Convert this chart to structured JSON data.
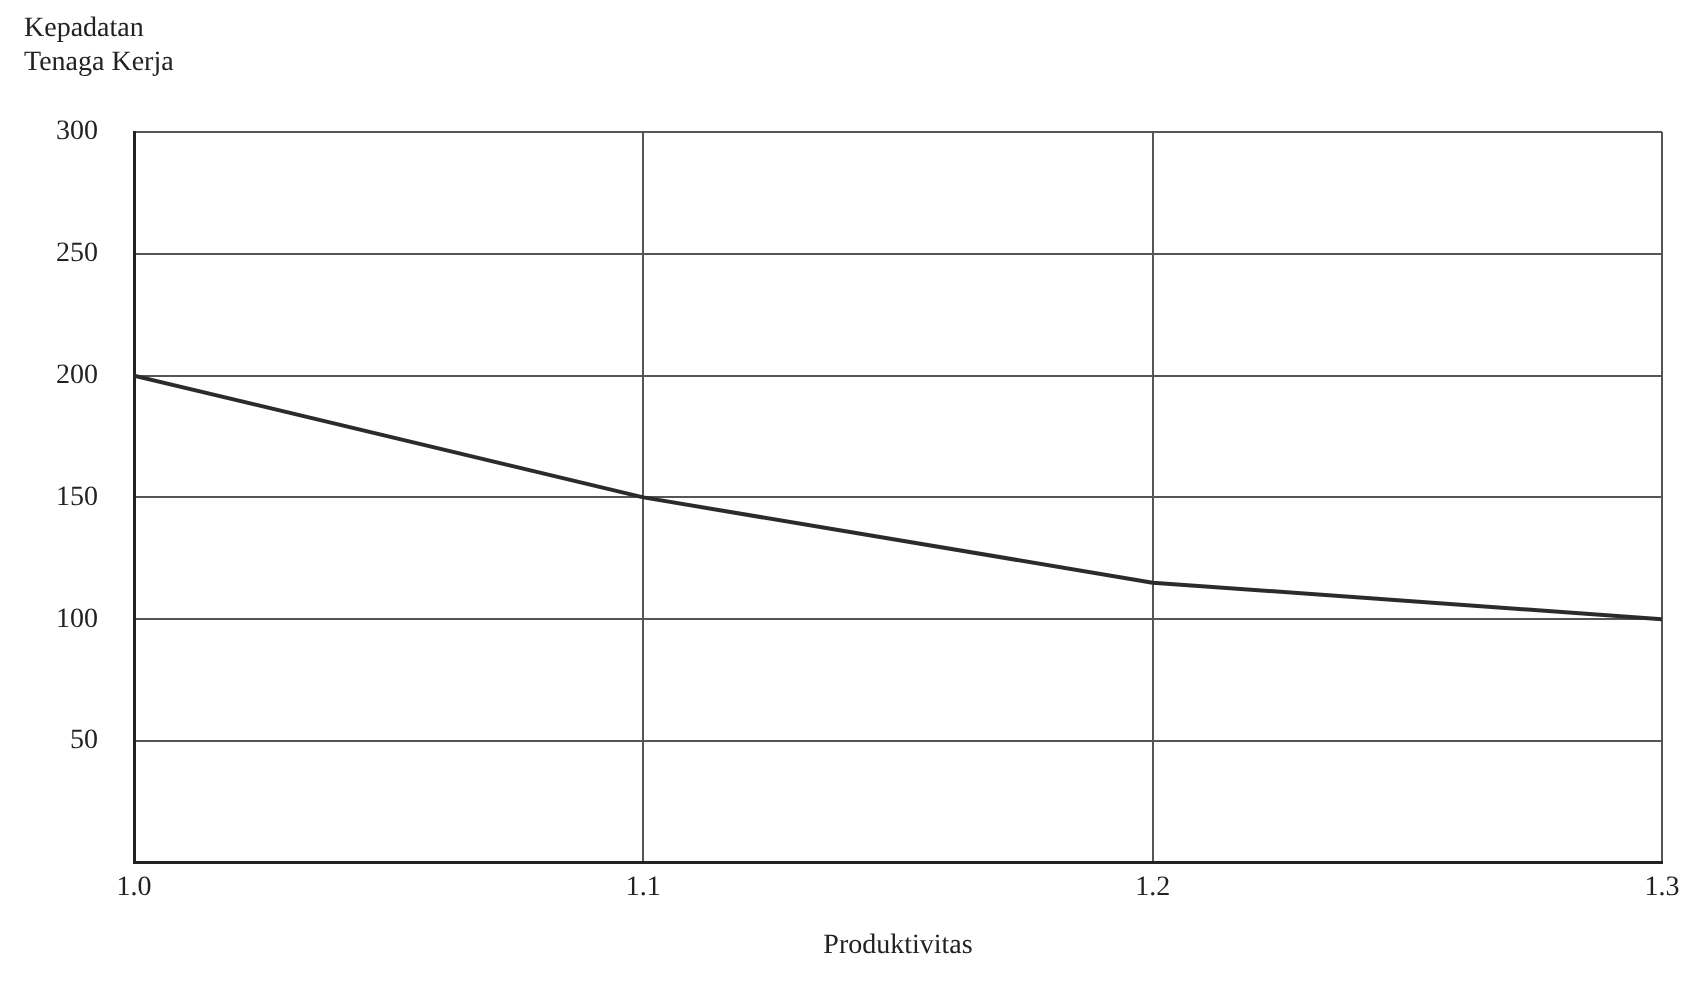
{
  "chart_data": {
    "type": "line",
    "xlabel": "Produktivitas",
    "ylabel": "Kepadatan Tenaga Kerja",
    "x": [
      1.0,
      1.1,
      1.2,
      1.3
    ],
    "series": [
      {
        "color": "#2b2b2b",
        "values": [
          200,
          150,
          115,
          100
        ]
      }
    ],
    "xlim": [
      1.0,
      1.3
    ],
    "xticks": [
      {
        "value": 1.0,
        "label": "1.0"
      },
      1.1,
      1.2,
      1.3
    ],
    "ylim": [
      0,
      300
    ],
    "yticks": [
      50,
      100,
      150,
      200,
      250,
      300
    ],
    "grid": true,
    "legend": false,
    "marker": "none",
    "line_style": "solid"
  }
}
